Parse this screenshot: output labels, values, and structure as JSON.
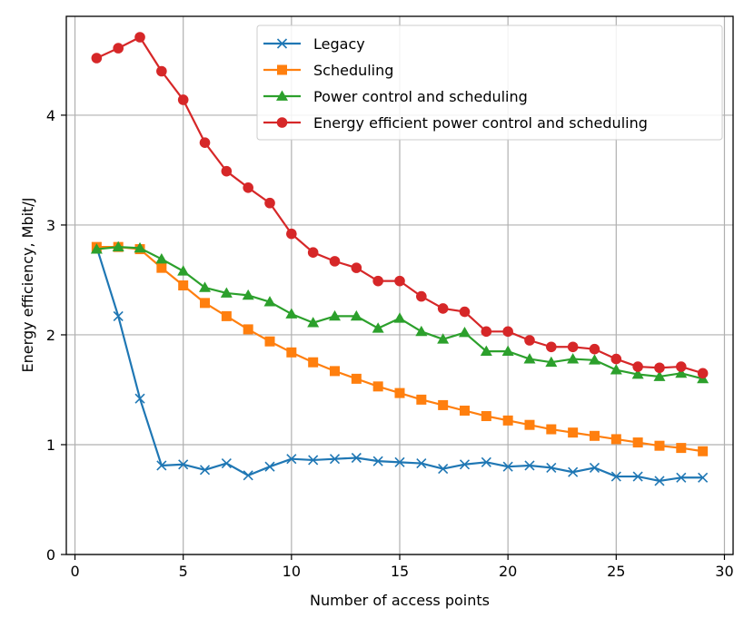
{
  "chart_data": {
    "type": "line",
    "title": "",
    "xlabel": "Number of access points",
    "ylabel": "Energy efficiency, Mbit/J",
    "xlim": [
      -0.4,
      30.4
    ],
    "ylim": [
      0,
      4.9
    ],
    "xticks": [
      0,
      5,
      10,
      15,
      20,
      25,
      30
    ],
    "yticks": [
      0,
      1,
      2,
      3,
      4
    ],
    "grid": true,
    "legend_position": "top-right",
    "x": [
      1,
      2,
      3,
      4,
      5,
      6,
      7,
      8,
      9,
      10,
      11,
      12,
      13,
      14,
      15,
      16,
      17,
      18,
      19,
      20,
      21,
      22,
      23,
      24,
      25,
      26,
      27,
      28,
      29
    ],
    "series": [
      {
        "name": "Legacy",
        "color": "#1f77b4",
        "marker": "x",
        "values": [
          2.8,
          2.17,
          1.42,
          0.81,
          0.82,
          0.77,
          0.83,
          0.72,
          0.8,
          0.87,
          0.86,
          0.87,
          0.88,
          0.85,
          0.84,
          0.83,
          0.78,
          0.82,
          0.84,
          0.8,
          0.81,
          0.79,
          0.75,
          0.79,
          0.71,
          0.71,
          0.67,
          0.7,
          0.7
        ]
      },
      {
        "name": "Scheduling",
        "color": "#ff7f0e",
        "marker": "square",
        "values": [
          2.8,
          2.8,
          2.78,
          2.61,
          2.45,
          2.29,
          2.17,
          2.05,
          1.94,
          1.84,
          1.75,
          1.67,
          1.6,
          1.53,
          1.47,
          1.41,
          1.36,
          1.31,
          1.26,
          1.22,
          1.18,
          1.14,
          1.11,
          1.08,
          1.05,
          1.02,
          0.99,
          0.97,
          0.94
        ]
      },
      {
        "name": "Power control and scheduling",
        "color": "#2ca02c",
        "marker": "triangle",
        "values": [
          2.78,
          2.8,
          2.79,
          2.69,
          2.58,
          2.43,
          2.38,
          2.36,
          2.3,
          2.19,
          2.11,
          2.17,
          2.17,
          2.06,
          2.15,
          2.03,
          1.96,
          2.02,
          1.85,
          1.85,
          1.78,
          1.75,
          1.78,
          1.77,
          1.68,
          1.64,
          1.62,
          1.65,
          1.6
        ]
      },
      {
        "name": "Energy efficient power control and scheduling",
        "color": "#d62728",
        "marker": "circle",
        "values": [
          4.52,
          4.61,
          4.71,
          4.4,
          4.14,
          3.75,
          3.49,
          3.34,
          3.2,
          2.92,
          2.75,
          2.67,
          2.61,
          2.49,
          2.49,
          2.35,
          2.24,
          2.21,
          2.03,
          2.03,
          1.95,
          1.89,
          1.89,
          1.87,
          1.78,
          1.71,
          1.7,
          1.71,
          1.65
        ]
      }
    ]
  }
}
